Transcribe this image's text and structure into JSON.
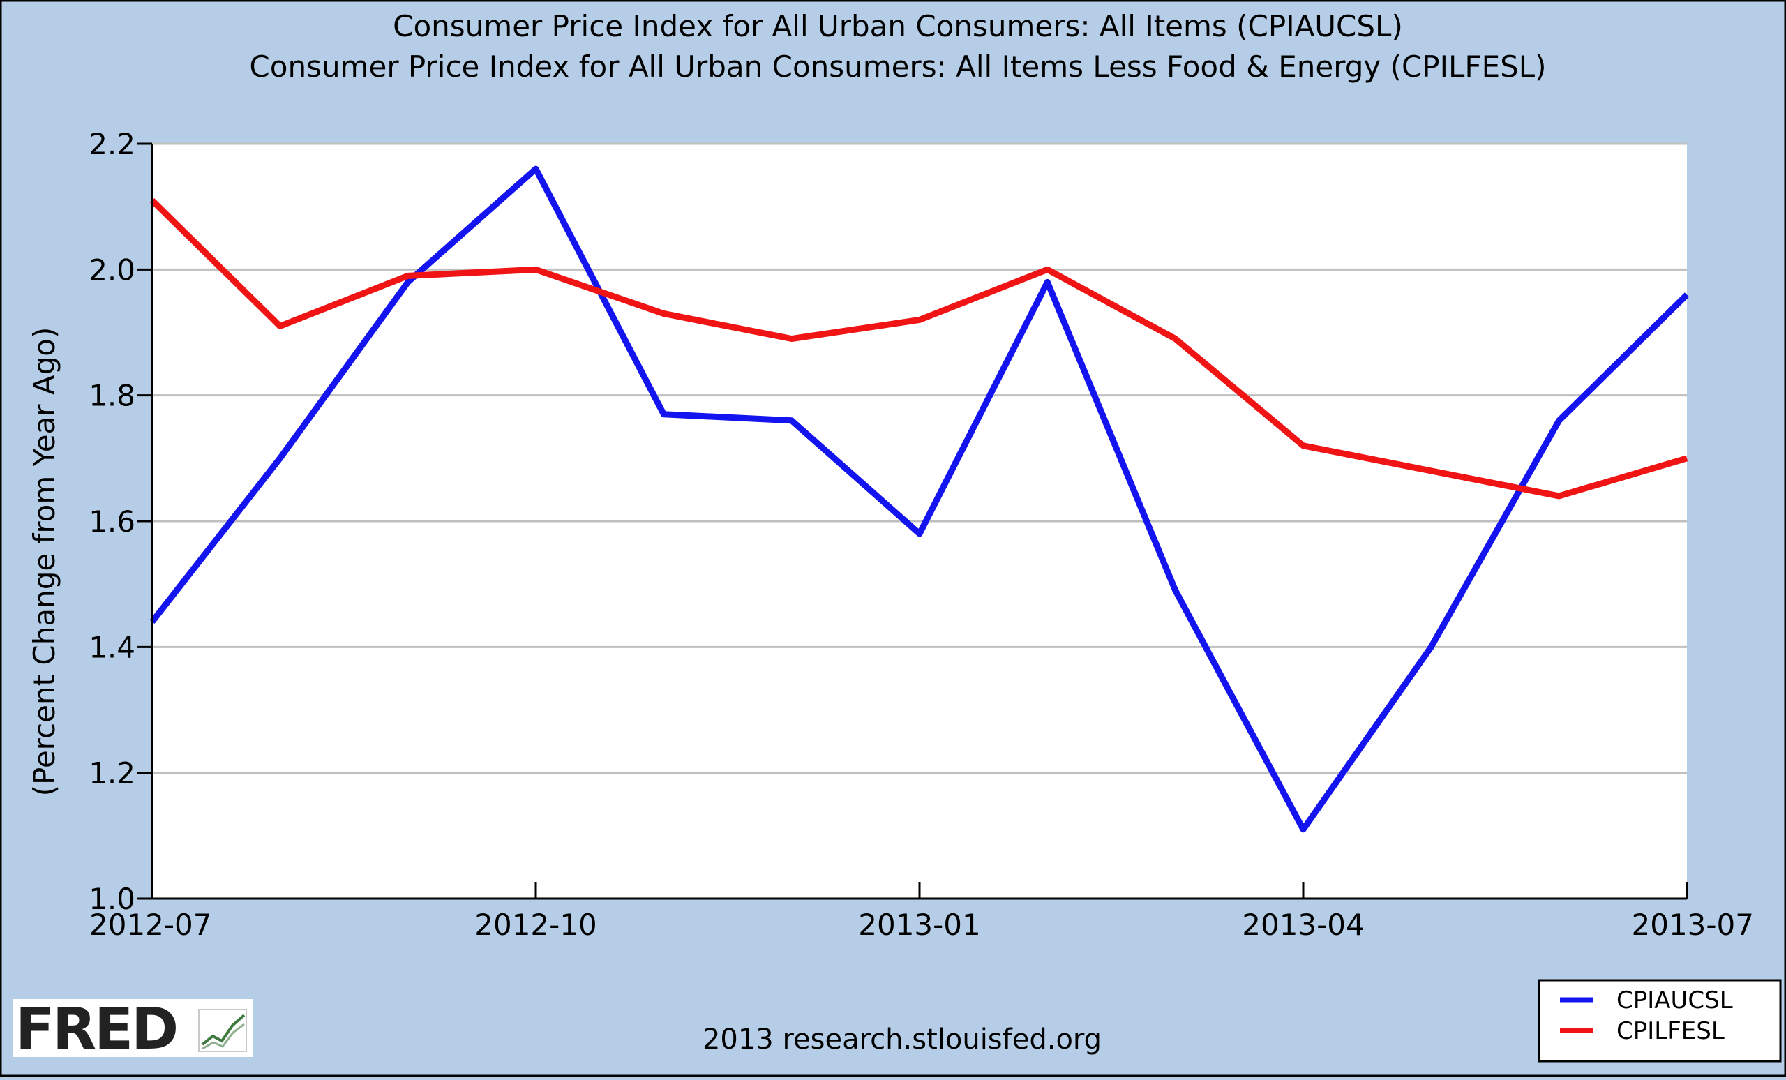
{
  "colors": {
    "background": "#b5cde6",
    "plot_background": "#ffffff",
    "gridline": "#bfbfbf",
    "axis": "#000000",
    "series_cpiaucsl": "#1414f0",
    "series_cpilfesl": "#f01414"
  },
  "footer": {
    "logo_text": "FRED",
    "logo_icon": "trend-chart-icon",
    "source_text": "2013 research.stlouisfed.org"
  },
  "chart_data": {
    "type": "line",
    "title": "Consumer Price Index for All Urban Consumers: All Items (CPIAUCSL)",
    "subtitle": "Consumer Price Index for All Urban Consumers: All Items Less Food & Energy (CPILFESL)",
    "xlabel": "",
    "ylabel": "(Percent Change from Year Ago)",
    "x": [
      "2012-07",
      "2012-08",
      "2012-09",
      "2012-10",
      "2012-11",
      "2012-12",
      "2013-01",
      "2013-02",
      "2013-03",
      "2013-04",
      "2013-05",
      "2013-06",
      "2013-07"
    ],
    "x_ticks": [
      "2012-07",
      "2012-10",
      "2013-01",
      "2013-04",
      "2013-07"
    ],
    "ylim": [
      1.0,
      2.2
    ],
    "y_ticks": [
      "1.0",
      "1.2",
      "1.4",
      "1.6",
      "1.8",
      "2.0",
      "2.2"
    ],
    "grid": true,
    "legend_position": "bottom-right",
    "series": [
      {
        "name": "CPIAUCSL",
        "color": "#1414f0",
        "values": [
          1.44,
          1.7,
          1.98,
          2.16,
          1.77,
          1.76,
          1.58,
          1.98,
          1.49,
          1.11,
          1.4,
          1.76,
          1.96
        ]
      },
      {
        "name": "CPILFESL",
        "color": "#f01414",
        "values": [
          2.11,
          1.91,
          1.99,
          2.0,
          1.93,
          1.89,
          1.92,
          2.0,
          1.89,
          1.72,
          1.68,
          1.64,
          1.7
        ]
      }
    ]
  }
}
